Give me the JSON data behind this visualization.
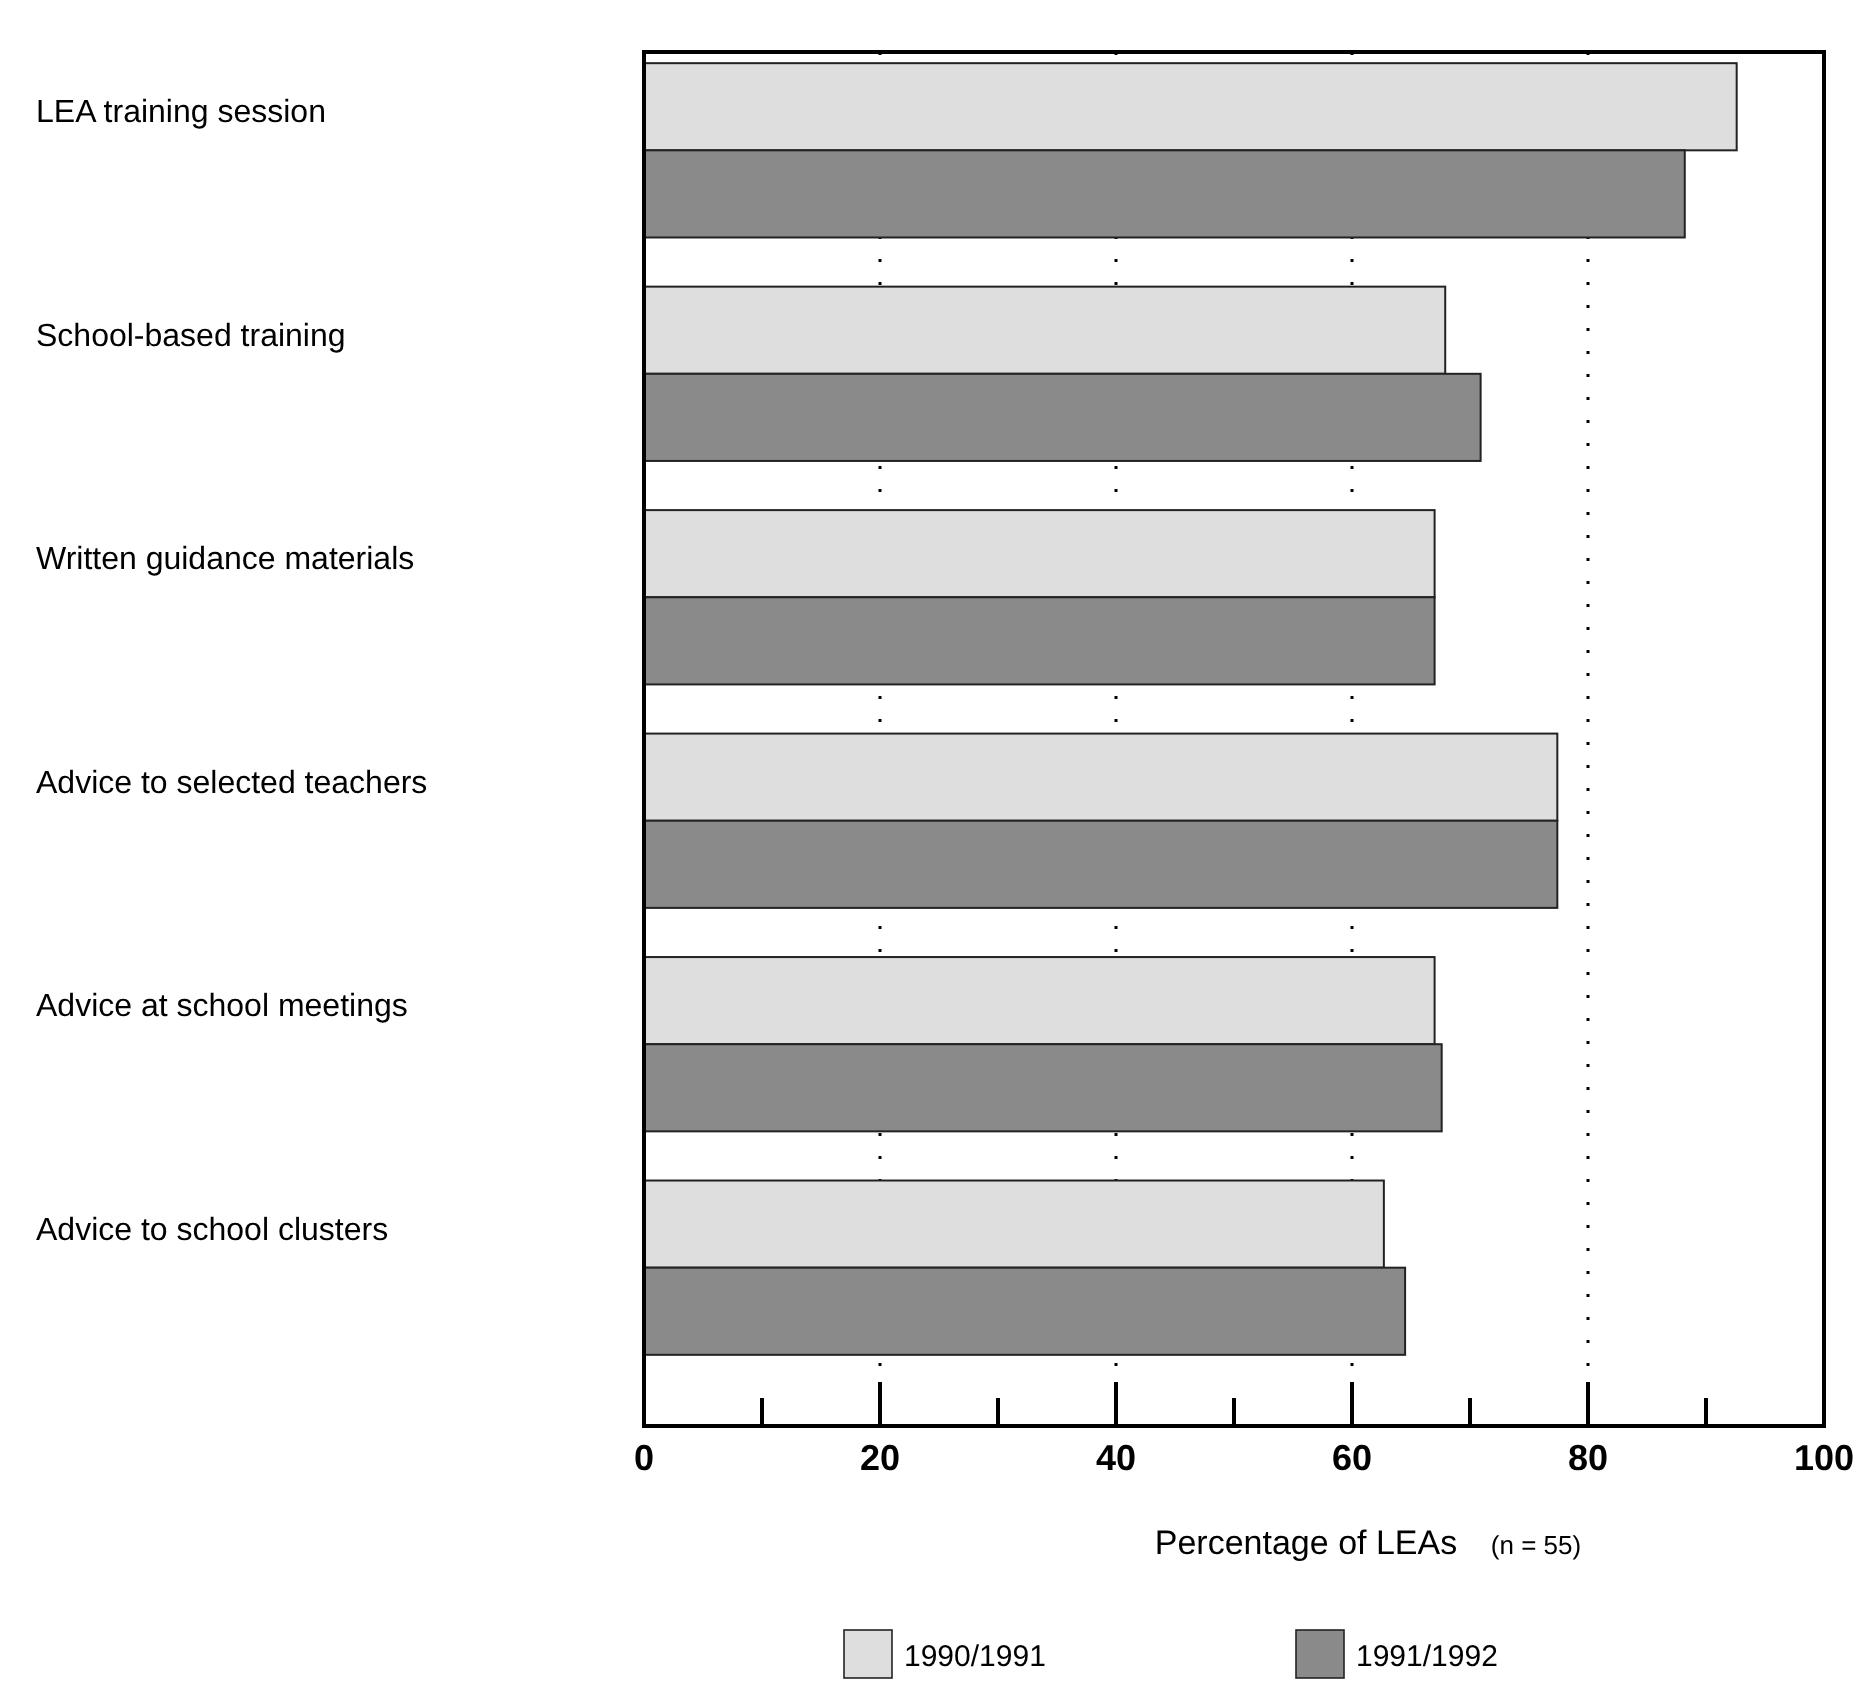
{
  "chart_data": {
    "type": "bar",
    "orientation": "horizontal",
    "categories": [
      "LEA  training session",
      "School-based training",
      "Written guidance materials",
      "Advice to selected teachers",
      "Advice at school meetings",
      "Advice to school clusters"
    ],
    "series": [
      {
        "name": "1990/1991",
        "color": "#dedede",
        "values": [
          92.6,
          67.9,
          67,
          77.4,
          67,
          62.7
        ]
      },
      {
        "name": "1991/1992",
        "color": "#8a8a8a",
        "values": [
          88.2,
          70.9,
          67,
          77.4,
          67.6,
          64.5
        ]
      }
    ],
    "xlabel": "Percentage of LEAs",
    "annotations": [
      "(n = 55)"
    ],
    "xlim": [
      0,
      100
    ],
    "xticks": [
      0,
      {
        "value": 10,
        "label": null
      },
      20,
      {
        "value": 30,
        "label": null
      },
      40,
      {
        "value": 50,
        "label": null
      },
      60,
      {
        "value": 70,
        "label": null
      },
      80,
      {
        "value": 90,
        "label": null
      },
      100
    ],
    "grid": "x",
    "legend": "bottom"
  }
}
